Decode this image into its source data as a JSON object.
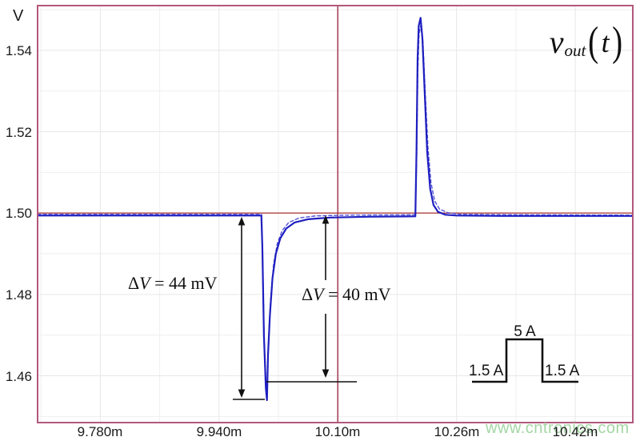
{
  "chart_data": {
    "type": "line",
    "title": "vout(t)",
    "title_parts": {
      "var": "v",
      "sub": "out",
      "open": "(",
      "arg": "t",
      "close": ")"
    },
    "ylabel": "V",
    "xlabel": "",
    "x_range": [
      9.6955,
      10.4975
    ],
    "y_range": [
      1.4485,
      1.551
    ],
    "x_ticks": [
      {
        "value": 9.78,
        "label": "9.780m"
      },
      {
        "value": 9.94,
        "label": "9.940m"
      },
      {
        "value": 10.1,
        "label": "10.10m"
      },
      {
        "value": 10.26,
        "label": "10.26m"
      },
      {
        "value": 10.42,
        "label": "10.42m"
      }
    ],
    "y_ticks": [
      {
        "value": 1.54,
        "label": "1.54"
      },
      {
        "value": 1.52,
        "label": "1.52"
      },
      {
        "value": 1.5,
        "label": "1.50"
      },
      {
        "value": 1.48,
        "label": "1.48"
      },
      {
        "value": 1.46,
        "label": "1.46"
      }
    ],
    "x_minor_gridlines": [
      9.7,
      9.86,
      10.02,
      10.18,
      10.34
    ],
    "y_minor_gridlines": [
      1.55,
      1.53,
      1.51,
      1.49,
      1.47,
      1.45
    ],
    "grid": true,
    "legend": "none",
    "cursor": {
      "x": 10.1,
      "y": 1.5
    },
    "series": [
      {
        "name": "vout-simulated-solid",
        "style": "solid",
        "color": "#1f1fc0",
        "points": [
          [
            9.6955,
            1.4994
          ],
          [
            9.997,
            1.4994
          ],
          [
            9.9983,
            1.492
          ],
          [
            10.0005,
            1.47
          ],
          [
            10.003,
            1.457
          ],
          [
            10.0045,
            1.454
          ],
          [
            10.006,
            1.465
          ],
          [
            10.0085,
            1.475
          ],
          [
            10.012,
            1.484
          ],
          [
            10.0165,
            1.49
          ],
          [
            10.0225,
            1.4938
          ],
          [
            10.0305,
            1.4962
          ],
          [
            10.042,
            1.4977
          ],
          [
            10.06,
            1.4985
          ],
          [
            10.09,
            1.4989
          ],
          [
            10.14,
            1.4991
          ],
          [
            10.2045,
            1.4992
          ],
          [
            10.206,
            1.515
          ],
          [
            10.2075,
            1.538
          ],
          [
            10.209,
            1.546
          ],
          [
            10.2115,
            1.548
          ],
          [
            10.214,
            1.543
          ],
          [
            10.217,
            1.53
          ],
          [
            10.2205,
            1.515
          ],
          [
            10.2245,
            1.506
          ],
          [
            10.229,
            1.502
          ],
          [
            10.235,
            1.5003
          ],
          [
            10.245,
            1.4996
          ],
          [
            10.26,
            1.4994
          ],
          [
            10.32,
            1.4993
          ],
          [
            10.497,
            1.4993
          ]
        ]
      },
      {
        "name": "vout-model-dashed",
        "style": "dashed",
        "color": "#5252d8",
        "points": [
          [
            9.6955,
            1.4997
          ],
          [
            9.9972,
            1.4997
          ],
          [
            9.9986,
            1.491
          ],
          [
            10.0008,
            1.469
          ],
          [
            10.0032,
            1.4585
          ],
          [
            10.0046,
            1.456
          ],
          [
            10.0065,
            1.468
          ],
          [
            10.0095,
            1.479
          ],
          [
            10.0135,
            1.4875
          ],
          [
            10.0185,
            1.4925
          ],
          [
            10.025,
            1.4957
          ],
          [
            10.034,
            1.4977
          ],
          [
            10.048,
            1.4988
          ],
          [
            10.07,
            1.4993
          ],
          [
            10.11,
            1.4995
          ],
          [
            10.2045,
            1.4996
          ],
          [
            10.2062,
            1.513
          ],
          [
            10.2078,
            1.535
          ],
          [
            10.2095,
            1.544
          ],
          [
            10.212,
            1.5462
          ],
          [
            10.2148,
            1.542
          ],
          [
            10.218,
            1.529
          ],
          [
            10.2215,
            1.516
          ],
          [
            10.2255,
            1.5075
          ],
          [
            10.2305,
            1.503
          ],
          [
            10.237,
            1.501
          ],
          [
            10.248,
            1.5001
          ],
          [
            10.265,
            1.4997
          ],
          [
            10.33,
            1.4996
          ],
          [
            10.497,
            1.4995
          ]
        ]
      }
    ],
    "annotations": [
      {
        "id": "undershoot",
        "delta": "Δ",
        "var": "V",
        "value": " = 44 mV"
      },
      {
        "id": "recovery",
        "delta": "Δ",
        "var": "V",
        "value": " = 40 mV"
      }
    ],
    "inset_load_step": {
      "low_label_left": "1.5 A",
      "high_label": "5 A",
      "low_label_right": "1.5 A"
    }
  },
  "watermark": {
    "text": "www.cntronics.com",
    "color": "#a4d6a4"
  },
  "colors": {
    "plot_border": "#b2587c",
    "cursor_vertical": "#a84358",
    "cursor_horizontal": "#b04343",
    "grid_major": "#e7e7e7",
    "grid_minor": "#f1eeee",
    "annotation_ink": "#111111"
  }
}
